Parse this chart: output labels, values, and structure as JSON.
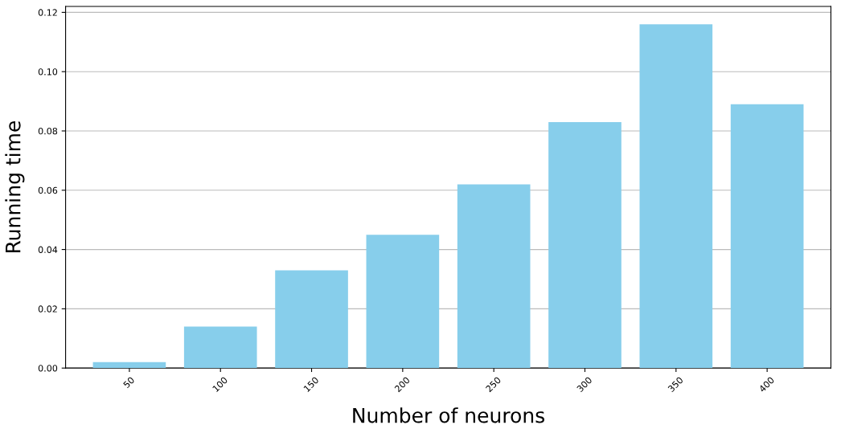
{
  "chart_data": {
    "type": "bar",
    "xlabel": "Number of neurons",
    "ylabel": "Running time",
    "categories": [
      "50",
      "100",
      "150",
      "200",
      "250",
      "300",
      "350",
      "400"
    ],
    "values": [
      0.002,
      0.014,
      0.033,
      0.045,
      0.062,
      0.083,
      0.116,
      0.089
    ],
    "color": "#87ceeb",
    "ylim": [
      0,
      0.122
    ],
    "yticks": [
      {
        "value": 0,
        "label": "0.00"
      },
      {
        "value": 0.02,
        "label": "0.02"
      },
      {
        "value": 0.04,
        "label": "0.04"
      },
      {
        "value": 0.06,
        "label": "0.06"
      },
      {
        "value": 0.08,
        "label": "0.08"
      },
      {
        "value": 0.1,
        "label": "0.10"
      },
      {
        "value": 0.12,
        "label": "0.12"
      }
    ],
    "grid": "y"
  }
}
